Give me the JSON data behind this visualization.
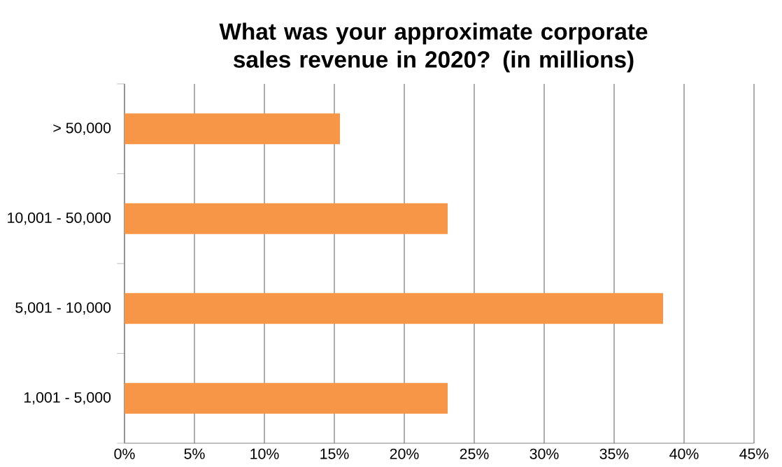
{
  "chart_data": {
    "type": "bar",
    "orientation": "horizontal",
    "title": "What was your approximate corporate sales revenue in 2020? (in millions)",
    "categories": [
      "> 50,000",
      "10,001 - 50,000",
      "5,001 - 10,000",
      "1,001 - 5,000"
    ],
    "values": [
      15.4,
      23.1,
      38.5,
      23.1
    ],
    "color": "#f79646",
    "xlim": [
      0,
      45
    ],
    "xticks": [
      {
        "value": 0,
        "label": "0%"
      },
      {
        "value": 5,
        "label": "5%"
      },
      {
        "value": 10,
        "label": "10%"
      },
      {
        "value": 15,
        "label": "15%"
      },
      {
        "value": 20,
        "label": "20%"
      },
      {
        "value": 25,
        "label": "25%"
      },
      {
        "value": 30,
        "label": "30%"
      },
      {
        "value": 35,
        "label": "35%"
      },
      {
        "value": 40,
        "label": "40%"
      },
      {
        "value": 45,
        "label": "45%"
      }
    ],
    "grid": "x"
  }
}
